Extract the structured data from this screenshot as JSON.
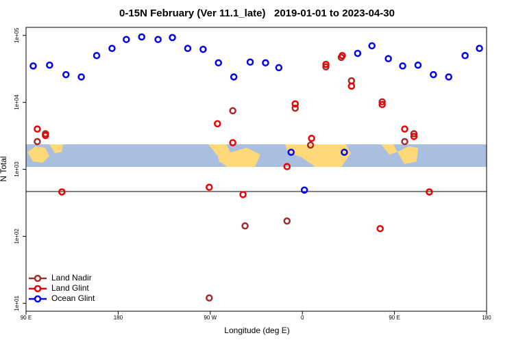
{
  "chart_data": {
    "type": "scatter",
    "title": "0-15N February (Ver 11.1_late)   2019-01-01 to 2023-04-30",
    "x_label": "Longitude (deg E)",
    "y_label": "N Total",
    "xlim": [
      90,
      540
    ],
    "xticks": [
      {
        "value": 90,
        "label": "90 E"
      },
      {
        "value": 180,
        "label": "180"
      },
      {
        "value": 270,
        "label": "90 W"
      },
      {
        "value": 360,
        "label": "0"
      },
      {
        "value": 450,
        "label": "90 E"
      },
      {
        "value": 540,
        "label": "180"
      }
    ],
    "ylim": [
      7.6,
      132000
    ],
    "yticks": [
      {
        "value": 10,
        "label": "1e+01"
      },
      {
        "value": 100,
        "label": "1e+02"
      },
      {
        "value": 1000,
        "label": "1e+03"
      },
      {
        "value": 10000,
        "label": "1e+04"
      },
      {
        "value": 100000,
        "label": "1e+05"
      }
    ],
    "log_y": true,
    "grid": false,
    "legend": "bottom-left",
    "series": [
      {
        "name": "Land Nadir",
        "color": "#a52a2a",
        "x": [
          101,
          109,
          125,
          269,
          292,
          304,
          345,
          353,
          368,
          383,
          398,
          408,
          438,
          460,
          469,
          484
        ],
        "values": [
          2600,
          3400,
          460,
          12,
          7500,
          143,
          169,
          8200,
          2300,
          34000,
          47000,
          21000,
          10200,
          2600,
          3400,
          460
        ]
      },
      {
        "name": "Land Glint",
        "color": "#ee0000",
        "x": [
          101,
          109,
          125,
          269,
          277,
          292,
          302,
          345,
          353,
          369,
          383,
          399,
          408,
          436,
          438,
          460,
          469,
          484
        ],
        "values": [
          4000,
          3200,
          460,
          540,
          4800,
          2500,
          420,
          1100,
          9500,
          2900,
          37000,
          50000,
          17500,
          130,
          9300,
          4000,
          3100,
          460
        ]
      },
      {
        "name": "Ocean Glint",
        "color": "#0000ee",
        "x": [
          97,
          113,
          129,
          144,
          159,
          174,
          188,
          203,
          219,
          233,
          248,
          263,
          278,
          293,
          309,
          324,
          337,
          349,
          362,
          401,
          414,
          428,
          444,
          458,
          473,
          488,
          503,
          519,
          533
        ],
        "values": [
          35000,
          36000,
          26000,
          24000,
          50000,
          64000,
          87000,
          95000,
          87000,
          93000,
          64000,
          62000,
          39000,
          24000,
          40000,
          39000,
          33000,
          1800,
          490,
          1800,
          54000,
          70000,
          45000,
          35000,
          36000,
          26000,
          24000,
          50000,
          64000
        ]
      }
    ]
  }
}
